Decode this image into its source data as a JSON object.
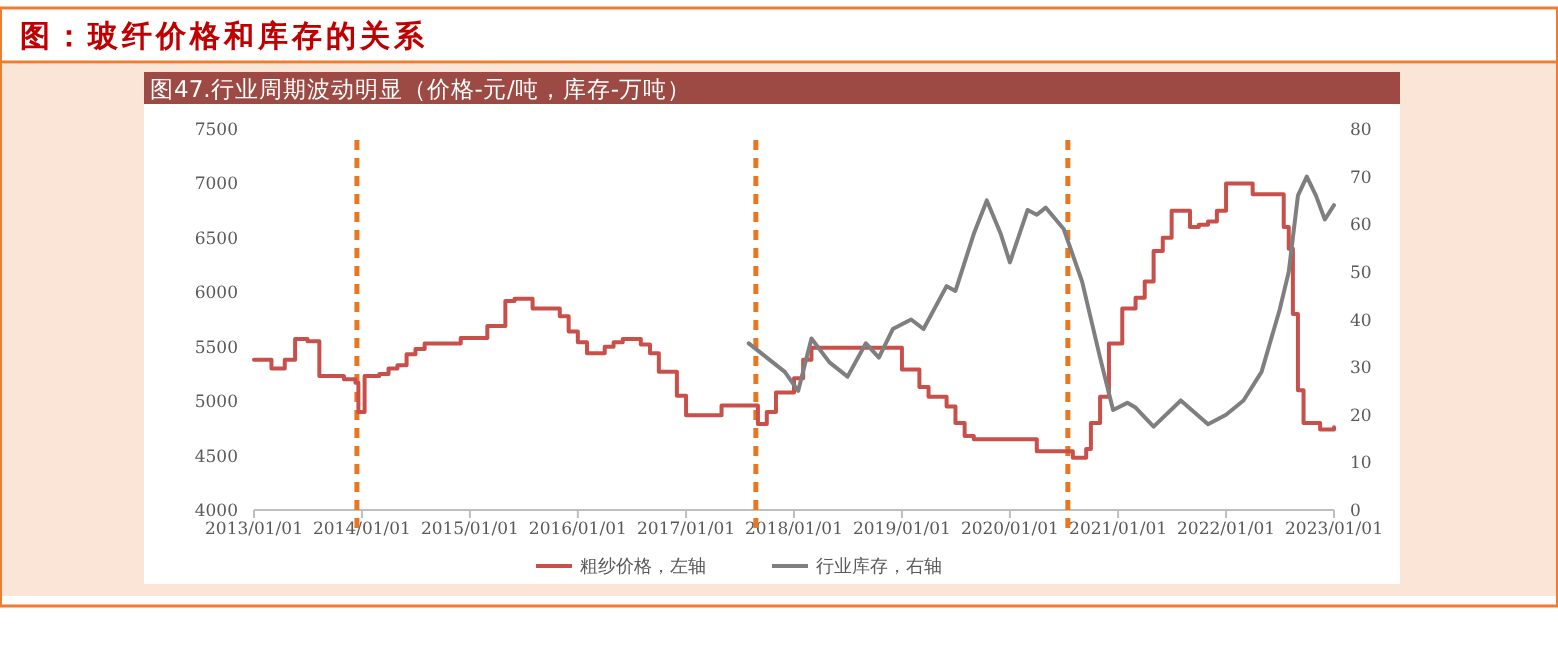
{
  "chart_data": {
    "type": "line",
    "title": "图：玻纤价格和库存的关系",
    "subtitle": "图47.行业周期波动明显（价格-元/吨，库存-万吨）",
    "xlim": [
      "2013-01-01",
      "2023-01-01"
    ],
    "xticks": [
      {
        "value": "2013-01-01",
        "label": "2013/01/01"
      },
      {
        "value": "2014-01-01",
        "label": "2014/01/01"
      },
      {
        "value": "2015-01-01",
        "label": "2015/01/01"
      },
      {
        "value": "2016-01-01",
        "label": "2016/01/01"
      },
      {
        "value": "2017-01-01",
        "label": "2017/01/01"
      },
      {
        "value": "2018-01-01",
        "label": "2018/01/01"
      },
      {
        "value": "2019-01-01",
        "label": "2019/01/01"
      },
      {
        "value": "2020-01-01",
        "label": "2020/01/01"
      },
      {
        "value": "2021-01-01",
        "label": "2021/01/01"
      },
      {
        "value": "2022-01-01",
        "label": "2022/01/01"
      },
      {
        "value": "2023-01-01",
        "label": "2023/01/01"
      }
    ],
    "ylim": [
      4000,
      7500
    ],
    "yticks": [
      4000,
      4500,
      5000,
      5500,
      6000,
      6500,
      7000,
      7500
    ],
    "y2lim": [
      0,
      80
    ],
    "y2ticks": [
      0,
      10,
      20,
      30,
      40,
      50,
      60,
      70,
      80
    ],
    "grid": false,
    "legend": "bottom",
    "ref_lines": [
      {
        "axis": "x",
        "value": "2013-12-15",
        "color": "#e87722",
        "line_style": "dashed"
      },
      {
        "axis": "x",
        "value": "2017-08-25",
        "color": "#e87722",
        "line_style": "dashed"
      },
      {
        "axis": "x",
        "value": "2020-07-15",
        "color": "#e87722",
        "line_style": "dashed"
      }
    ],
    "series": [
      {
        "name": "粗纱价格，左轴",
        "type": "step",
        "color": "#c9504a",
        "x": [
          "2013-01-01",
          "2013-03-01",
          "2013-04-15",
          "2013-05-20",
          "2013-07-01",
          "2013-08-10",
          "2013-11-01",
          "2013-12-10",
          "2013-12-20",
          "2014-01-10",
          "2014-03-01",
          "2014-04-01",
          "2014-05-01",
          "2014-06-01",
          "2014-07-01",
          "2014-08-01",
          "2014-12-01",
          "2015-03-01",
          "2015-05-01",
          "2015-06-01",
          "2015-08-01",
          "2015-11-01",
          "2015-12-01",
          "2016-01-01",
          "2016-02-01",
          "2016-04-01",
          "2016-05-01",
          "2016-06-01",
          "2016-08-01",
          "2016-09-01",
          "2016-10-01",
          "2016-12-01",
          "2017-01-01",
          "2017-05-01",
          "2017-09-01",
          "2017-10-01",
          "2017-11-01",
          "2018-01-01",
          "2018-02-01",
          "2018-03-01",
          "2019-01-01",
          "2019-03-01",
          "2019-04-01",
          "2019-06-01",
          "2019-07-01",
          "2019-08-01",
          "2019-09-01",
          "2020-04-01",
          "2020-08-01",
          "2020-09-15",
          "2020-10-01",
          "2020-11-01",
          "2020-12-01",
          "2021-01-15",
          "2021-03-01",
          "2021-04-01",
          "2021-05-01",
          "2021-06-01",
          "2021-07-01",
          "2021-09-01",
          "2021-10-01",
          "2021-11-01",
          "2021-12-01",
          "2022-01-01",
          "2022-04-01",
          "2022-07-15",
          "2022-08-01",
          "2022-08-15",
          "2022-09-01",
          "2022-09-20",
          "2022-11-15",
          "2023-01-01"
        ],
        "values": [
          5380,
          5300,
          5380,
          5570,
          5550,
          5230,
          5200,
          5170,
          4900,
          5230,
          5250,
          5300,
          5330,
          5430,
          5480,
          5530,
          5580,
          5690,
          5920,
          5940,
          5850,
          5780,
          5640,
          5540,
          5440,
          5500,
          5540,
          5570,
          5520,
          5440,
          5270,
          5050,
          4870,
          4960,
          4790,
          4900,
          5080,
          5210,
          5380,
          5490,
          5290,
          5130,
          5040,
          4950,
          4800,
          4680,
          4650,
          4540,
          4480,
          4560,
          4800,
          5040,
          5530,
          5850,
          5950,
          6100,
          6380,
          6500,
          6750,
          6600,
          6620,
          6650,
          6750,
          7000,
          6900,
          6600,
          6400,
          5800,
          5100,
          4800,
          4740,
          4760
        ]
      },
      {
        "name": "行业库存，右轴",
        "type": "line",
        "axis": "y2",
        "color": "#7f7f7f",
        "x": [
          "2017-08-01",
          "2017-10-01",
          "2017-12-01",
          "2018-01-15",
          "2018-03-01",
          "2018-05-01",
          "2018-07-01",
          "2018-09-01",
          "2018-10-15",
          "2018-12-01",
          "2019-02-01",
          "2019-03-15",
          "2019-06-01",
          "2019-07-01",
          "2019-09-01",
          "2019-10-15",
          "2019-12-01",
          "2020-01-01",
          "2020-03-01",
          "2020-04-01",
          "2020-05-01",
          "2020-07-01",
          "2020-09-01",
          "2020-11-01",
          "2020-12-15",
          "2021-02-01",
          "2021-03-01",
          "2021-05-01",
          "2021-08-01",
          "2021-11-01",
          "2022-01-01",
          "2022-03-01",
          "2022-05-01",
          "2022-07-01",
          "2022-08-01",
          "2022-09-01",
          "2022-10-01",
          "2022-11-01",
          "2022-12-01",
          "2023-01-01"
        ],
        "values": [
          35,
          32,
          29,
          25,
          36,
          31,
          28,
          35,
          32,
          38,
          40,
          38,
          47,
          46,
          58,
          65,
          58,
          52,
          63,
          62,
          63.5,
          59,
          48,
          32,
          21,
          22.5,
          21.5,
          17.5,
          23,
          18,
          20,
          23,
          29,
          42,
          50,
          66,
          70,
          66,
          61,
          64
        ]
      }
    ]
  }
}
